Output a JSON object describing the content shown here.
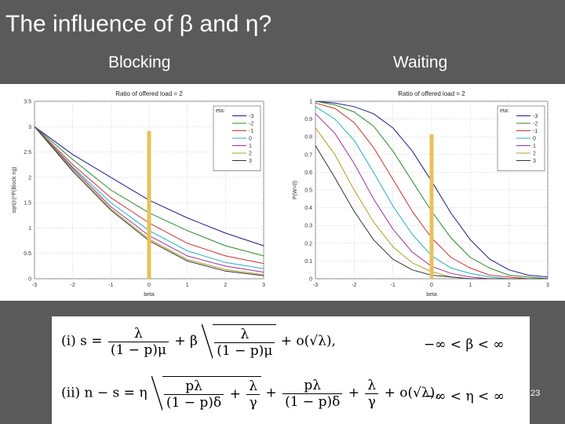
{
  "slide": {
    "title": "The influence of β and η?",
    "left_subtitle": "Blocking",
    "right_subtitle": "Waiting",
    "page_number": "23"
  },
  "formulas": {
    "line1": {
      "label": "(i)",
      "lhs": "s =",
      "frac1_num": "λ",
      "frac1_den": "(1 − p)μ",
      "plus_beta": "+ β",
      "sqrt_num": "λ",
      "sqrt_den": "(1 − p)μ",
      "tail": "+ o(√λ),",
      "condition": "−∞ < β < ∞"
    },
    "line2": {
      "label": "(ii)",
      "lhs": "n − s = η",
      "sqrt_a_num": "pλ",
      "sqrt_a_den": "(1 − p)δ",
      "sqrt_plus": "+",
      "sqrt_b_num": "λ",
      "sqrt_b_den": "γ",
      "plus1": "+",
      "frac3_num": "pλ",
      "frac3_den": "(1 − p)δ",
      "plus2": "+",
      "frac4_num": "λ",
      "frac4_den": "γ",
      "tail": "+ o(√λ),",
      "condition": "−∞ < η < ∞"
    }
  },
  "chart_data": [
    {
      "type": "line",
      "title": "Ratio of offered load = 2",
      "xlabel": "beta",
      "ylabel": "sqrt(n)*P(Block ng)",
      "xlim": [
        -3,
        3
      ],
      "ylim": [
        0,
        3.5
      ],
      "x_ticks": [
        "-3",
        "-2",
        "-1",
        "0",
        "1",
        "2",
        "3"
      ],
      "y_ticks": [
        "0",
        "0.5",
        "1",
        "1.5",
        "2",
        "2.5",
        "3",
        "3.5"
      ],
      "grid": true,
      "legend_title": "eta:",
      "legend_position": "top-right",
      "highlight_x": 0,
      "highlight_color": "#e8c15a",
      "x": [
        -3,
        -2,
        -1,
        0,
        1,
        2,
        3
      ],
      "series": [
        {
          "name": "-3",
          "color": "#1a1a8c",
          "values": [
            3.0,
            2.45,
            2.0,
            1.55,
            1.2,
            0.9,
            0.65
          ]
        },
        {
          "name": "-2",
          "color": "#2a8a2a",
          "values": [
            3.0,
            2.35,
            1.75,
            1.3,
            0.95,
            0.65,
            0.45
          ]
        },
        {
          "name": "-1",
          "color": "#d03030",
          "values": [
            3.0,
            2.25,
            1.6,
            1.1,
            0.7,
            0.45,
            0.3
          ]
        },
        {
          "name": "0",
          "color": "#20b0c0",
          "values": [
            3.0,
            2.2,
            1.5,
            0.95,
            0.55,
            0.32,
            0.2
          ]
        },
        {
          "name": "1",
          "color": "#a030a0",
          "values": [
            3.0,
            2.18,
            1.42,
            0.85,
            0.45,
            0.25,
            0.13
          ]
        },
        {
          "name": "2",
          "color": "#b0a020",
          "values": [
            3.0,
            2.15,
            1.38,
            0.78,
            0.38,
            0.18,
            0.08
          ]
        },
        {
          "name": "3",
          "color": "#333333",
          "values": [
            3.0,
            2.12,
            1.35,
            0.75,
            0.35,
            0.15,
            0.06
          ]
        }
      ]
    },
    {
      "type": "line",
      "title": "Ratio of offered load = 2",
      "xlabel": "beta",
      "ylabel": "P(W>0)",
      "xlim": [
        -3,
        3
      ],
      "ylim": [
        0,
        1
      ],
      "x_ticks": [
        "-3",
        "-2",
        "-1",
        "0",
        "1",
        "2",
        "3"
      ],
      "y_ticks": [
        "0",
        "0.1",
        "0.2",
        "0.3",
        "0.4",
        "0.5",
        "0.6",
        "0.7",
        "0.8",
        "0.9",
        "1"
      ],
      "grid": true,
      "legend_title": "eta:",
      "legend_position": "top-right",
      "highlight_x": 0,
      "highlight_color": "#e8c15a",
      "x": [
        -3,
        -2.5,
        -2,
        -1.5,
        -1,
        -0.5,
        0,
        0.5,
        1,
        1.5,
        2,
        2.5,
        3
      ],
      "series": [
        {
          "name": "-3",
          "color": "#1a1a8c",
          "values": [
            1.0,
            0.99,
            0.97,
            0.93,
            0.85,
            0.72,
            0.55,
            0.37,
            0.22,
            0.11,
            0.05,
            0.02,
            0.01
          ]
        },
        {
          "name": "-2",
          "color": "#2a8a2a",
          "values": [
            1.0,
            0.98,
            0.94,
            0.86,
            0.72,
            0.55,
            0.38,
            0.23,
            0.12,
            0.06,
            0.02,
            0.01,
            0.0
          ]
        },
        {
          "name": "-1",
          "color": "#d03030",
          "values": [
            0.99,
            0.96,
            0.88,
            0.74,
            0.56,
            0.38,
            0.23,
            0.12,
            0.06,
            0.02,
            0.01,
            0.0,
            0.0
          ]
        },
        {
          "name": "0",
          "color": "#20b0c0",
          "values": [
            0.97,
            0.9,
            0.78,
            0.6,
            0.41,
            0.25,
            0.13,
            0.06,
            0.03,
            0.01,
            0.0,
            0.0,
            0.0
          ]
        },
        {
          "name": "1",
          "color": "#a030a0",
          "values": [
            0.93,
            0.82,
            0.65,
            0.45,
            0.28,
            0.15,
            0.07,
            0.03,
            0.01,
            0.0,
            0.0,
            0.0,
            0.0
          ]
        },
        {
          "name": "2",
          "color": "#b0a020",
          "values": [
            0.85,
            0.7,
            0.5,
            0.32,
            0.18,
            0.09,
            0.04,
            0.01,
            0.0,
            0.0,
            0.0,
            0.0,
            0.0
          ]
        },
        {
          "name": "3",
          "color": "#333333",
          "values": [
            0.75,
            0.57,
            0.38,
            0.22,
            0.11,
            0.05,
            0.02,
            0.01,
            0.0,
            0.0,
            0.0,
            0.0,
            0.0
          ]
        }
      ]
    }
  ]
}
